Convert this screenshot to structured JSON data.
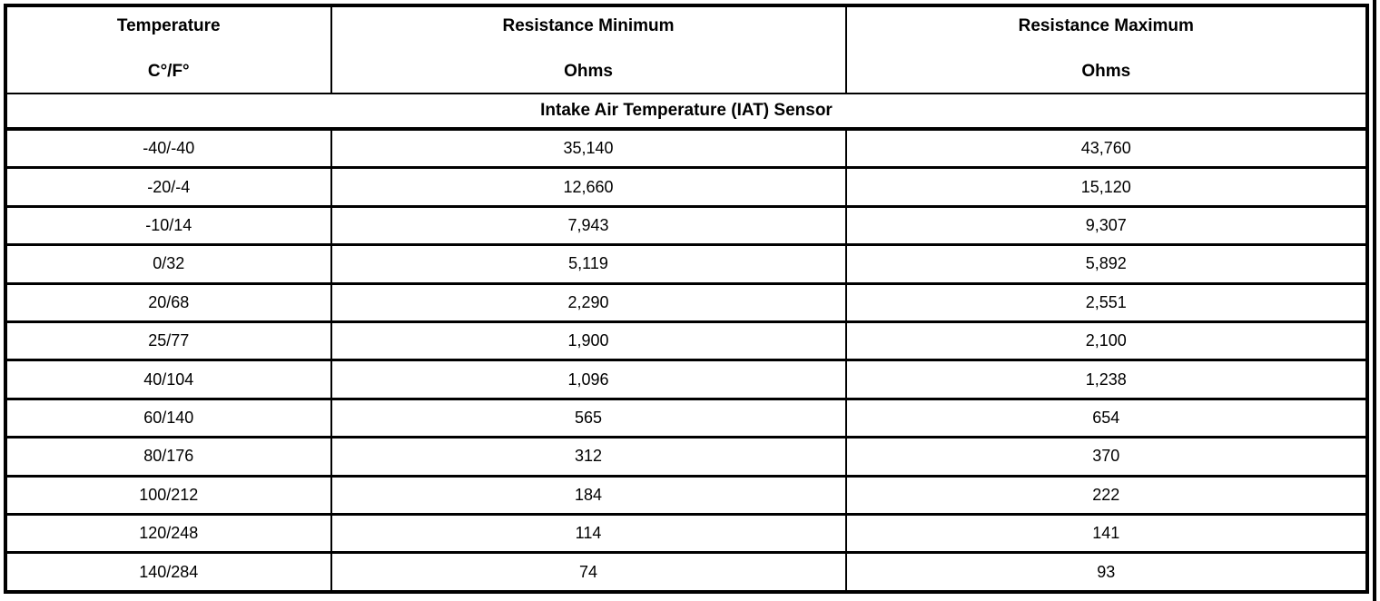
{
  "colors": {
    "border": "#000000",
    "background": "#ffffff",
    "text": "#000000"
  },
  "table": {
    "columns": [
      {
        "title": "Temperature",
        "subtitle": "C°/F°"
      },
      {
        "title": "Resistance Minimum",
        "subtitle": "Ohms"
      },
      {
        "title": "Resistance Maximum",
        "subtitle": "Ohms"
      }
    ],
    "section_title": "Intake Air Temperature (IAT) Sensor",
    "rows": [
      {
        "temperature": "-40/-40",
        "resistance_min": "35,140",
        "resistance_max": "43,760"
      },
      {
        "temperature": "-20/-4",
        "resistance_min": "12,660",
        "resistance_max": "15,120"
      },
      {
        "temperature": "-10/14",
        "resistance_min": "7,943",
        "resistance_max": "9,307"
      },
      {
        "temperature": "0/32",
        "resistance_min": "5,119",
        "resistance_max": "5,892"
      },
      {
        "temperature": "20/68",
        "resistance_min": "2,290",
        "resistance_max": "2,551"
      },
      {
        "temperature": "25/77",
        "resistance_min": "1,900",
        "resistance_max": "2,100"
      },
      {
        "temperature": "40/104",
        "resistance_min": "1,096",
        "resistance_max": "1,238"
      },
      {
        "temperature": "60/140",
        "resistance_min": "565",
        "resistance_max": "654"
      },
      {
        "temperature": "80/176",
        "resistance_min": "312",
        "resistance_max": "370"
      },
      {
        "temperature": "100/212",
        "resistance_min": "184",
        "resistance_max": "222"
      },
      {
        "temperature": "120/248",
        "resistance_min": "114",
        "resistance_max": "141"
      },
      {
        "temperature": "140/284",
        "resistance_min": "74",
        "resistance_max": "93"
      }
    ]
  }
}
